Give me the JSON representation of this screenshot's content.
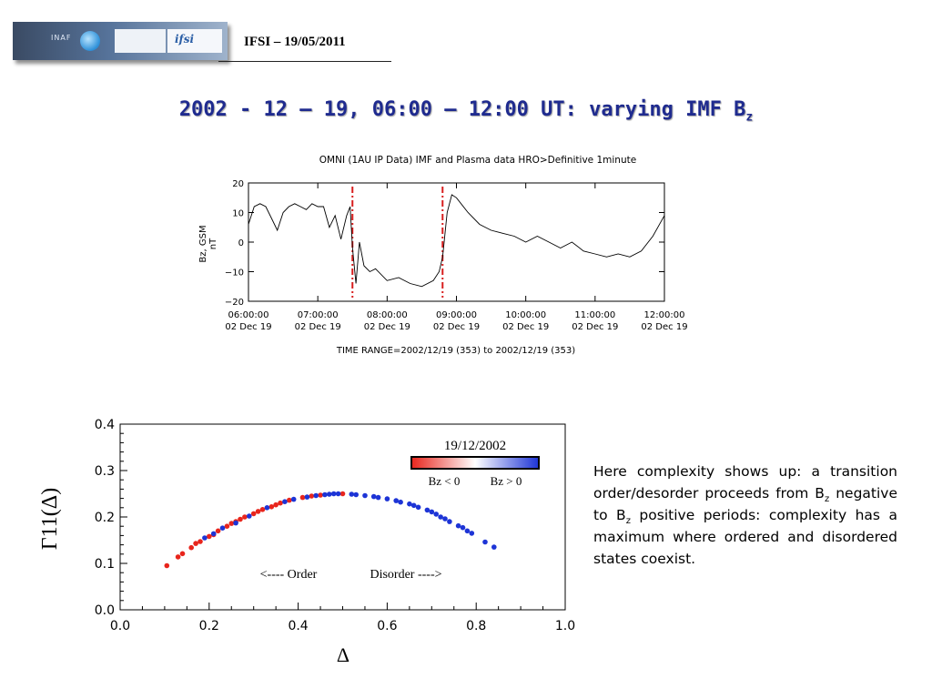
{
  "header": {
    "banner_labels": [
      "INAF",
      "ifsi"
    ],
    "title": "IFSI – 19/05/2011"
  },
  "slide_title": {
    "main": "2002 - 12 – 19, 06:00 – 12:00 UT: varying IMF B",
    "sub": "z"
  },
  "description": {
    "parts": [
      "Here complexity shows up: a transition order/desorder proceeds from B",
      "z",
      " negative to B",
      "z",
      " positive periods: complexity has a maximum where ordered and disordered states coexist."
    ]
  },
  "chart_data": [
    {
      "type": "line",
      "title": "OMNI (1AU IP Data)  IMF and Plasma data  HRO>Definitive 1minute",
      "ylabel": "Bz, GSM",
      "yunit": "nT",
      "ylim": [
        -20,
        20
      ],
      "yticks": [
        "20",
        "10",
        "0",
        "−10",
        "−20"
      ],
      "xlim": [
        "2002-12-19T06:00",
        "2002-12-19T12:00"
      ],
      "xticks": [
        {
          "time": "06:00:00",
          "date": "02 Dec 19"
        },
        {
          "time": "07:00:00",
          "date": "02 Dec 19"
        },
        {
          "time": "08:00:00",
          "date": "02 Dec 19"
        },
        {
          "time": "09:00:00",
          "date": "02 Dec 19"
        },
        {
          "time": "10:00:00",
          "date": "02 Dec 19"
        },
        {
          "time": "11:00:00",
          "date": "02 Dec 19"
        },
        {
          "time": "12:00:00",
          "date": "02 Dec 19"
        }
      ],
      "footer": "TIME RANGE=2002/12/19 (353) to 2002/12/19 (353)",
      "markers": [
        {
          "time": "2002-12-19T07:30",
          "color": "#d81e1e",
          "style": "dash-dot"
        },
        {
          "time": "2002-12-19T08:48",
          "color": "#d81e1e",
          "style": "dash-dot"
        }
      ],
      "series": [
        {
          "x": [
            "2002-12-19T06:00",
            "2002-12-19T06:05",
            "2002-12-19T06:10",
            "2002-12-19T06:15",
            "2002-12-19T06:20",
            "2002-12-19T06:25",
            "2002-12-19T06:30",
            "2002-12-19T06:35",
            "2002-12-19T06:40",
            "2002-12-19T06:45",
            "2002-12-19T06:50",
            "2002-12-19T06:55",
            "2002-12-19T07:00",
            "2002-12-19T07:05",
            "2002-12-19T07:10",
            "2002-12-19T07:15",
            "2002-12-19T07:20",
            "2002-12-19T07:25",
            "2002-12-19T07:28",
            "2002-12-19T07:30",
            "2002-12-19T07:33",
            "2002-12-19T07:36",
            "2002-12-19T07:40",
            "2002-12-19T07:45",
            "2002-12-19T07:50",
            "2002-12-19T08:00",
            "2002-12-19T08:10",
            "2002-12-19T08:20",
            "2002-12-19T08:30",
            "2002-12-19T08:40",
            "2002-12-19T08:45",
            "2002-12-19T08:48",
            "2002-12-19T08:52",
            "2002-12-19T08:56",
            "2002-12-19T09:00",
            "2002-12-19T09:10",
            "2002-12-19T09:20",
            "2002-12-19T09:30",
            "2002-12-19T09:40",
            "2002-12-19T09:50",
            "2002-12-19T10:00",
            "2002-12-19T10:10",
            "2002-12-19T10:20",
            "2002-12-19T10:30",
            "2002-12-19T10:40",
            "2002-12-19T10:50",
            "2002-12-19T11:00",
            "2002-12-19T11:10",
            "2002-12-19T11:20",
            "2002-12-19T11:30",
            "2002-12-19T11:40",
            "2002-12-19T11:50",
            "2002-12-19T12:00"
          ],
          "y": [
            6,
            12,
            13,
            12,
            8,
            4,
            10,
            12,
            13,
            12,
            11,
            13,
            12,
            12,
            5,
            9,
            1,
            9,
            12,
            -2,
            -14,
            0,
            -8,
            -10,
            -9,
            -13,
            -12,
            -14,
            -15,
            -13,
            -10,
            -5,
            10,
            16,
            15,
            10,
            6,
            4,
            3,
            2,
            0,
            2,
            0,
            -2,
            0,
            -3,
            -4,
            -5,
            -4,
            -5,
            -3,
            2,
            9
          ]
        }
      ]
    },
    {
      "type": "scatter",
      "title": "19/12/2002",
      "xlabel": "Δ",
      "ylabel": "Γ11(Δ)",
      "xlim": [
        0.0,
        1.0
      ],
      "ylim": [
        0.0,
        0.4
      ],
      "xticks": [
        "0.0",
        "0.2",
        "0.4",
        "0.6",
        "0.8",
        "1.0"
      ],
      "yticks": [
        "0.0",
        "0.1",
        "0.2",
        "0.3",
        "0.4"
      ],
      "colorbar": {
        "left_label": "Bz < 0",
        "right_label": "Bz > 0",
        "colors": [
          "#e8251c",
          "#ffffff",
          "#1d34d6"
        ]
      },
      "annotations": [
        "<---- Order",
        "Disorder ---->"
      ],
      "series": [
        {
          "name": "Bz < 0",
          "color": "#e8251c",
          "x": [
            0.105,
            0.13,
            0.14,
            0.16,
            0.17,
            0.18,
            0.2,
            0.21,
            0.22,
            0.24,
            0.25,
            0.26,
            0.27,
            0.28,
            0.3,
            0.31,
            0.32,
            0.34,
            0.35,
            0.36,
            0.38,
            0.41,
            0.43,
            0.45,
            0.5
          ],
          "y": [
            0.095,
            0.114,
            0.121,
            0.134,
            0.143,
            0.147,
            0.158,
            0.162,
            0.17,
            0.18,
            0.186,
            0.19,
            0.195,
            0.2,
            0.207,
            0.212,
            0.216,
            0.222,
            0.226,
            0.23,
            0.236,
            0.242,
            0.245,
            0.247,
            0.25
          ]
        },
        {
          "name": "Bz > 0",
          "color": "#1d34d6",
          "x": [
            0.19,
            0.21,
            0.23,
            0.26,
            0.29,
            0.33,
            0.37,
            0.39,
            0.42,
            0.44,
            0.46,
            0.47,
            0.48,
            0.49,
            0.52,
            0.53,
            0.55,
            0.57,
            0.58,
            0.6,
            0.62,
            0.63,
            0.65,
            0.66,
            0.67,
            0.69,
            0.7,
            0.71,
            0.72,
            0.73,
            0.74,
            0.76,
            0.77,
            0.78,
            0.79,
            0.82,
            0.84
          ],
          "y": [
            0.155,
            0.164,
            0.176,
            0.187,
            0.202,
            0.22,
            0.233,
            0.238,
            0.243,
            0.246,
            0.248,
            0.249,
            0.25,
            0.25,
            0.249,
            0.248,
            0.246,
            0.244,
            0.242,
            0.239,
            0.235,
            0.232,
            0.228,
            0.225,
            0.221,
            0.215,
            0.211,
            0.206,
            0.2,
            0.196,
            0.19,
            0.181,
            0.177,
            0.17,
            0.165,
            0.146,
            0.135
          ]
        }
      ]
    }
  ]
}
